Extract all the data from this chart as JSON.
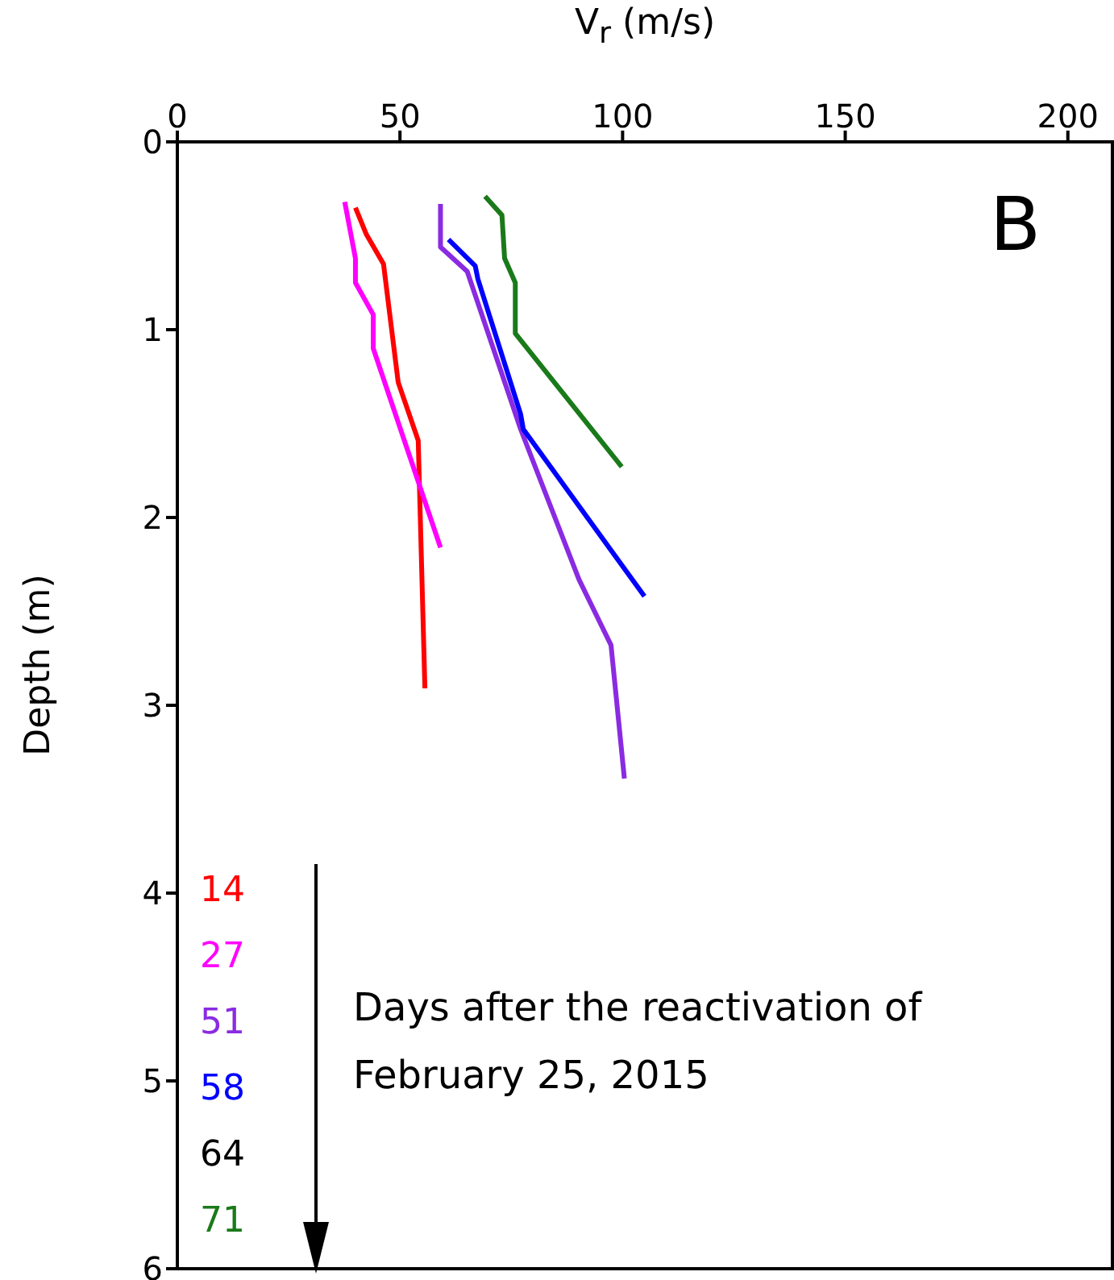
{
  "chart_data": {
    "type": "line",
    "xlabel": "V$_{r}$ (m/s)",
    "ylabel": "Depth (m)",
    "legend_title": "Days after the reactivation of February 25, 2015",
    "annotations": [
      "B"
    ],
    "xlim": [
      0,
      210
    ],
    "xticks": [
      0,
      50,
      100,
      150,
      200
    ],
    "ylim": [
      6,
      0
    ],
    "yticks": [
      0,
      1,
      2,
      3,
      4,
      5,
      6
    ],
    "grid": false,
    "legend": "bottom left",
    "marker": "none",
    "line_style": "solid",
    "series": [
      {
        "name": "14",
        "color": "#ff0000",
        "x": [
          40.0,
          42.4,
          46.3,
          49.6,
          54.1,
          55.6
        ],
        "values": [
          0.35,
          0.49,
          0.65,
          1.28,
          1.59,
          2.91
        ]
      },
      {
        "name": "27",
        "color": "#ff00ff",
        "x": [
          37.6,
          40.0,
          40.0,
          44.0,
          44.0,
          59.1
        ],
        "values": [
          0.32,
          0.62,
          0.75,
          0.92,
          1.1,
          2.16
        ]
      },
      {
        "name": "51",
        "color": "#8a2be2",
        "x": [
          59.1,
          59.1,
          65.1,
          77.1,
          90.2,
          97.4,
          100.4
        ],
        "values": [
          0.33,
          0.56,
          0.69,
          1.53,
          2.33,
          2.68,
          3.39
        ]
      },
      {
        "name": "58",
        "color": "#0000ff",
        "x": [
          60.9,
          66.9,
          67.5,
          77.1,
          77.7,
          104.9
        ],
        "values": [
          0.52,
          0.66,
          0.73,
          1.45,
          1.53,
          2.42
        ]
      },
      {
        "name": "64",
        "color": "#000000"
      },
      {
        "name": "71",
        "color": "#1a7a1a",
        "x": [
          69.1,
          72.9,
          73.5,
          75.9,
          75.9,
          99.8
        ],
        "values": [
          0.29,
          0.39,
          0.62,
          0.75,
          1.02,
          1.73
        ]
      }
    ]
  }
}
